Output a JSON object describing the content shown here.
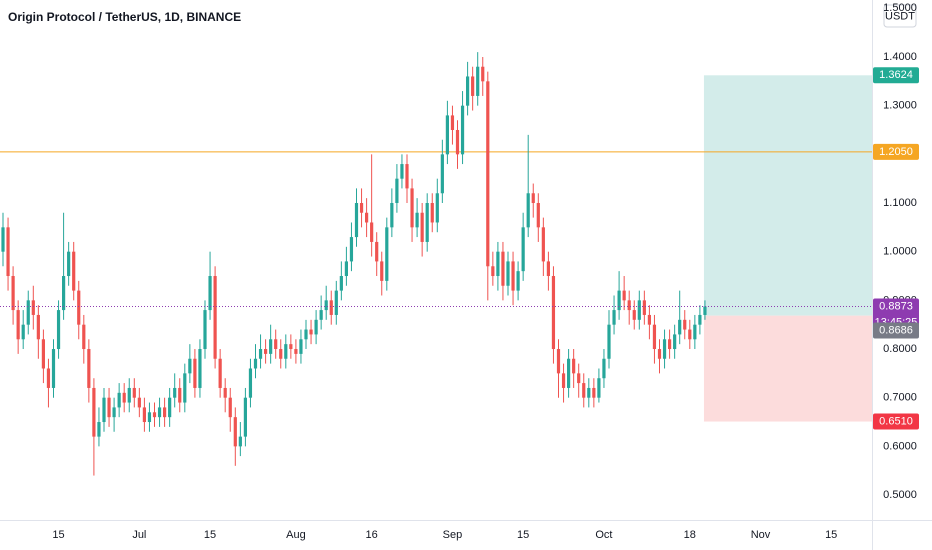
{
  "chart_data": {
    "type": "candlestick",
    "title": "Origin Protocol / TetherUS, 1D, BINANCE",
    "currency": "USDT",
    "up_color": "#26a69a",
    "down_color": "#ef5350",
    "grid": false,
    "ylim": [
      0.4487,
      1.5171
    ],
    "yticks": [
      {
        "value": 0.5,
        "label": "0.5000"
      },
      {
        "value": 0.6,
        "label": "0.6000"
      },
      {
        "value": 0.7,
        "label": "0.7000"
      },
      {
        "value": 0.8,
        "label": "0.8000"
      },
      {
        "value": 0.9,
        "label": "0.9000"
      },
      {
        "value": 1.0,
        "label": "1.0000"
      },
      {
        "value": 1.1,
        "label": "1.1000"
      },
      {
        "value": 1.2,
        "label": "1.2000"
      },
      {
        "value": 1.3,
        "label": "1.3000"
      },
      {
        "value": 1.4,
        "label": "1.4000"
      },
      {
        "value": 1.5,
        "label": "1.5000"
      }
    ],
    "categories": [
      null,
      null,
      null,
      null,
      null,
      null,
      null,
      null,
      null,
      null,
      null,
      "15",
      null,
      null,
      null,
      null,
      null,
      null,
      null,
      null,
      null,
      null,
      null,
      null,
      null,
      null,
      null,
      "Jul",
      null,
      null,
      null,
      null,
      null,
      null,
      null,
      null,
      null,
      null,
      null,
      null,
      null,
      "15",
      null,
      null,
      null,
      null,
      null,
      null,
      null,
      null,
      null,
      null,
      null,
      null,
      null,
      null,
      null,
      null,
      "Aug",
      null,
      null,
      null,
      null,
      null,
      null,
      null,
      null,
      null,
      null,
      null,
      null,
      null,
      null,
      "16",
      null,
      null,
      null,
      null,
      null,
      null,
      null,
      null,
      null,
      null,
      null,
      null,
      null,
      null,
      null,
      "Sep",
      null,
      null,
      null,
      null,
      null,
      null,
      null,
      null,
      null,
      null,
      null,
      null,
      null,
      "15",
      null,
      null,
      null,
      null,
      null,
      null,
      null,
      null,
      null,
      null,
      null,
      null,
      null,
      null,
      null,
      "Oct",
      null,
      null,
      null,
      null,
      null,
      null,
      null,
      null,
      null,
      null,
      null,
      null,
      null,
      null,
      null,
      null,
      "18",
      null,
      null,
      null,
      null,
      null,
      null,
      null,
      null,
      null,
      null,
      null,
      null,
      null,
      "Nov",
      null,
      null,
      null,
      null,
      null,
      null,
      null,
      null,
      null,
      null,
      null,
      null,
      null,
      "15",
      null,
      null,
      null,
      null,
      null,
      null,
      null,
      null
    ],
    "open": [
      1.0,
      1.05,
      0.95,
      0.88,
      0.82,
      0.85,
      0.9,
      0.87,
      0.82,
      0.76,
      0.72,
      0.8,
      0.88,
      0.95,
      1.0,
      0.92,
      0.85,
      0.8,
      0.72,
      0.62,
      0.65,
      0.7,
      0.66,
      0.68,
      0.71,
      0.69,
      0.72,
      0.7,
      0.68,
      0.65,
      0.67,
      0.66,
      0.68,
      0.66,
      0.7,
      0.72,
      0.69,
      0.75,
      0.78,
      0.72,
      0.8,
      0.88,
      0.95,
      0.78,
      0.72,
      0.7,
      0.66,
      0.6,
      0.62,
      0.7,
      0.76,
      0.78,
      0.8,
      0.79,
      0.82,
      0.8,
      0.78,
      0.81,
      0.8,
      0.79,
      0.82,
      0.84,
      0.83,
      0.86,
      0.88,
      0.9,
      0.87,
      0.92,
      0.95,
      0.98,
      1.03,
      1.1,
      1.08,
      1.06,
      1.02,
      0.98,
      0.94,
      1.05,
      1.1,
      1.15,
      1.18,
      1.13,
      1.05,
      1.08,
      1.02,
      1.1,
      1.06,
      1.12,
      1.2,
      1.28,
      1.25,
      1.2,
      1.3,
      1.36,
      1.32,
      1.38,
      1.35,
      0.97,
      0.95,
      1.0,
      0.93,
      0.98,
      0.92,
      0.96,
      1.05,
      1.12,
      1.1,
      1.05,
      0.98,
      0.95,
      0.8,
      0.75,
      0.72,
      0.78,
      0.75,
      0.73,
      0.7,
      0.72,
      0.7,
      0.74,
      0.78,
      0.85,
      0.88,
      0.92,
      0.9,
      0.88,
      0.86,
      0.9,
      0.87,
      0.85,
      0.8,
      0.78,
      0.82,
      0.8,
      0.83,
      0.86,
      0.84,
      0.82,
      0.85,
      0.87,
      null,
      null,
      null,
      null,
      null,
      null,
      null,
      null,
      null,
      null,
      null,
      null,
      null,
      null,
      null,
      null,
      null,
      null,
      null,
      null,
      null,
      null,
      null,
      null,
      null,
      null,
      null,
      null,
      null,
      null,
      null,
      null,
      null
    ],
    "high": [
      1.08,
      1.07,
      0.97,
      0.9,
      0.88,
      0.92,
      0.93,
      0.89,
      0.84,
      0.78,
      0.82,
      0.9,
      1.08,
      1.02,
      1.02,
      0.94,
      0.87,
      0.82,
      0.74,
      0.68,
      0.72,
      0.72,
      0.7,
      0.73,
      0.73,
      0.74,
      0.74,
      0.72,
      0.7,
      0.69,
      0.69,
      0.7,
      0.7,
      0.72,
      0.75,
      0.74,
      0.77,
      0.81,
      0.8,
      0.82,
      0.9,
      1.0,
      0.97,
      0.8,
      0.74,
      0.72,
      0.68,
      0.65,
      0.72,
      0.78,
      0.81,
      0.83,
      0.82,
      0.85,
      0.84,
      0.82,
      0.83,
      0.83,
      0.82,
      0.84,
      0.86,
      0.86,
      0.88,
      0.91,
      0.93,
      0.92,
      0.94,
      0.98,
      1.01,
      1.06,
      1.13,
      1.13,
      1.11,
      1.2,
      1.04,
      1.0,
      1.07,
      1.13,
      1.18,
      1.2,
      1.2,
      1.15,
      1.11,
      1.1,
      1.12,
      1.12,
      1.15,
      1.23,
      1.31,
      1.3,
      1.27,
      1.33,
      1.39,
      1.38,
      1.41,
      1.4,
      1.37,
      1.0,
      1.02,
      1.02,
      1.0,
      1.0,
      0.98,
      1.08,
      1.24,
      1.14,
      1.12,
      1.07,
      1.0,
      0.97,
      0.82,
      0.77,
      0.8,
      0.8,
      0.77,
      0.75,
      0.74,
      0.74,
      0.76,
      0.8,
      0.88,
      0.91,
      0.96,
      0.95,
      0.92,
      0.9,
      0.92,
      0.92,
      0.89,
      0.87,
      0.82,
      0.84,
      0.84,
      0.85,
      0.92,
      0.88,
      0.86,
      0.87,
      0.89,
      0.9,
      null,
      null,
      null,
      null,
      null,
      null,
      null,
      null,
      null,
      null,
      null,
      null,
      null,
      null,
      null,
      null,
      null,
      null,
      null,
      null,
      null,
      null,
      null,
      null,
      null,
      null,
      null,
      null,
      null,
      null,
      null,
      null,
      null
    ],
    "low": [
      0.97,
      0.92,
      0.85,
      0.79,
      0.8,
      0.83,
      0.84,
      0.78,
      0.73,
      0.68,
      0.7,
      0.78,
      0.86,
      0.93,
      0.9,
      0.82,
      0.77,
      0.69,
      0.54,
      0.6,
      0.63,
      0.64,
      0.63,
      0.66,
      0.67,
      0.67,
      0.68,
      0.66,
      0.63,
      0.63,
      0.64,
      0.64,
      0.64,
      0.64,
      0.68,
      0.67,
      0.67,
      0.73,
      0.7,
      0.7,
      0.78,
      0.86,
      0.76,
      0.7,
      0.67,
      0.63,
      0.56,
      0.58,
      0.6,
      0.68,
      0.74,
      0.76,
      0.77,
      0.77,
      0.78,
      0.76,
      0.76,
      0.78,
      0.77,
      0.77,
      0.8,
      0.81,
      0.81,
      0.84,
      0.86,
      0.85,
      0.85,
      0.9,
      0.93,
      0.96,
      1.01,
      1.05,
      1.03,
      0.99,
      0.95,
      0.91,
      0.92,
      1.03,
      1.08,
      1.13,
      1.1,
      1.02,
      1.03,
      0.99,
      1.0,
      1.04,
      1.04,
      1.1,
      1.18,
      1.22,
      1.17,
      1.18,
      1.28,
      1.29,
      1.3,
      1.32,
      0.9,
      0.93,
      0.92,
      0.9,
      0.91,
      0.89,
      0.9,
      0.94,
      1.03,
      1.07,
      1.02,
      0.95,
      0.92,
      0.77,
      0.7,
      0.69,
      0.7,
      0.72,
      0.7,
      0.68,
      0.68,
      0.68,
      0.69,
      0.72,
      0.76,
      0.83,
      0.86,
      0.88,
      0.85,
      0.84,
      0.84,
      0.85,
      0.82,
      0.77,
      0.75,
      0.76,
      0.78,
      0.78,
      0.81,
      0.82,
      0.8,
      0.8,
      0.83,
      0.86,
      null,
      null,
      null,
      null,
      null,
      null,
      null,
      null,
      null,
      null,
      null,
      null,
      null,
      null,
      null,
      null,
      null,
      null,
      null,
      null,
      null,
      null,
      null,
      null,
      null,
      null,
      null,
      null,
      null,
      null,
      null,
      null,
      null
    ],
    "close": [
      1.05,
      0.95,
      0.88,
      0.82,
      0.85,
      0.9,
      0.87,
      0.82,
      0.76,
      0.72,
      0.8,
      0.88,
      0.95,
      1.0,
      0.92,
      0.85,
      0.8,
      0.72,
      0.62,
      0.65,
      0.7,
      0.66,
      0.68,
      0.71,
      0.69,
      0.72,
      0.7,
      0.68,
      0.65,
      0.67,
      0.66,
      0.68,
      0.66,
      0.7,
      0.72,
      0.69,
      0.75,
      0.78,
      0.72,
      0.8,
      0.88,
      0.95,
      0.78,
      0.72,
      0.7,
      0.66,
      0.6,
      0.62,
      0.7,
      0.76,
      0.78,
      0.8,
      0.79,
      0.82,
      0.8,
      0.78,
      0.81,
      0.8,
      0.79,
      0.82,
      0.84,
      0.83,
      0.86,
      0.88,
      0.9,
      0.87,
      0.92,
      0.95,
      0.98,
      1.03,
      1.1,
      1.08,
      1.06,
      1.02,
      0.98,
      0.94,
      1.05,
      1.1,
      1.15,
      1.18,
      1.13,
      1.05,
      1.08,
      1.02,
      1.1,
      1.06,
      1.12,
      1.2,
      1.28,
      1.25,
      1.2,
      1.3,
      1.36,
      1.32,
      1.38,
      1.35,
      0.97,
      0.95,
      1.0,
      0.93,
      0.98,
      0.92,
      0.96,
      1.05,
      1.12,
      1.1,
      1.05,
      0.98,
      0.95,
      0.8,
      0.75,
      0.72,
      0.78,
      0.75,
      0.73,
      0.7,
      0.72,
      0.7,
      0.74,
      0.78,
      0.85,
      0.88,
      0.92,
      0.9,
      0.88,
      0.86,
      0.9,
      0.87,
      0.85,
      0.8,
      0.78,
      0.82,
      0.8,
      0.83,
      0.86,
      0.84,
      0.82,
      0.85,
      0.87,
      0.8873,
      null,
      null,
      null,
      null,
      null,
      null,
      null,
      null,
      null,
      null,
      null,
      null,
      null,
      null,
      null,
      null,
      null,
      null,
      null,
      null,
      null,
      null,
      null,
      null,
      null,
      null,
      null,
      null,
      null,
      null,
      null,
      null,
      null
    ],
    "horizontal_line": {
      "value": 1.205,
      "label": "1.2050",
      "color": "#f5a623"
    },
    "last_price": {
      "value": 0.8873,
      "countdown": "13:45:25",
      "color": "#8e3bb0"
    },
    "position": {
      "target": {
        "value": 1.3624,
        "label": "1.3624",
        "color": "#22ab94",
        "zone_color": "#d3ecea"
      },
      "entry": {
        "value": 0.8686,
        "label": "0.8686",
        "color": "#787b86"
      },
      "stop": {
        "value": 0.651,
        "label": "0.6510",
        "color": "#f23645",
        "zone_color": "#fcdcdc"
      }
    }
  }
}
